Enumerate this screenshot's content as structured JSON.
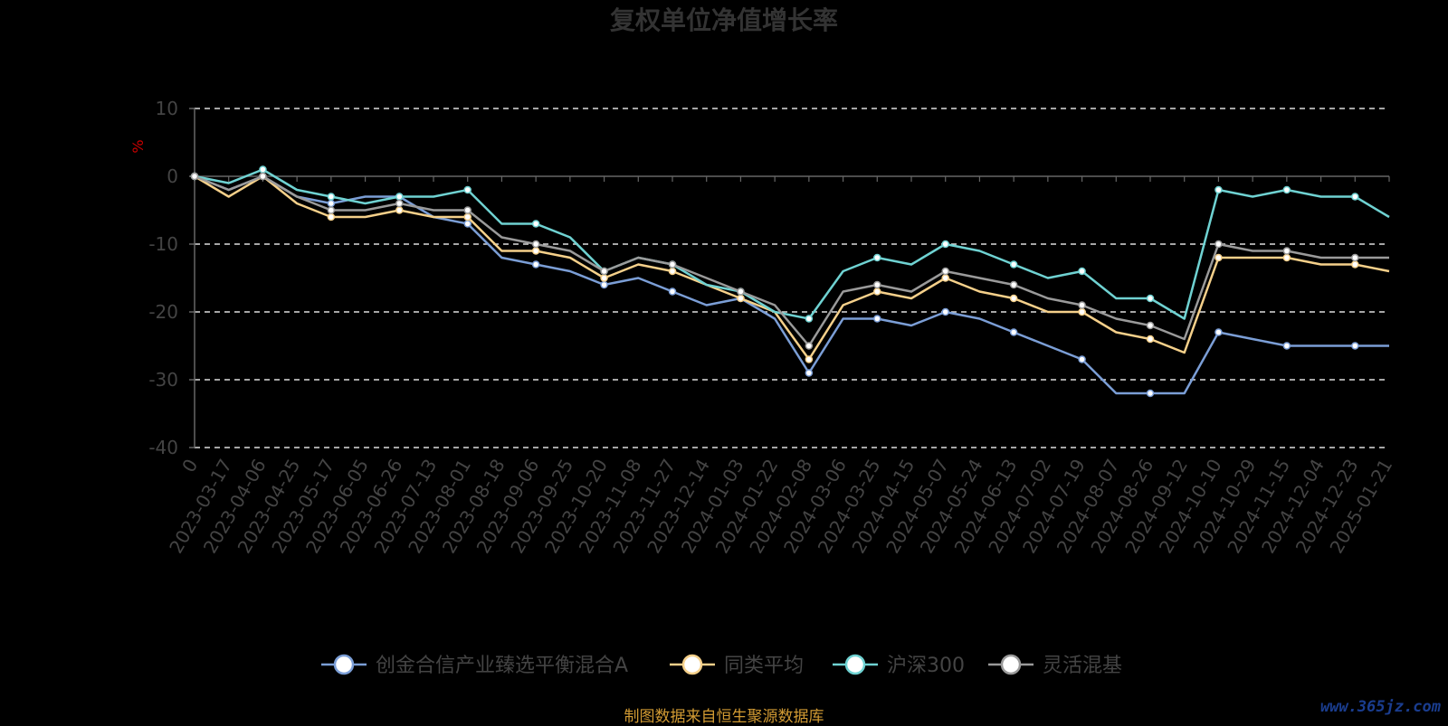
{
  "chart_data": {
    "type": "line",
    "title": "复权单位净值增长率",
    "ylabel": "%",
    "ylim": [
      -40,
      10
    ],
    "yticks": [
      10,
      0,
      -10,
      -20,
      -30,
      -40
    ],
    "grid": true,
    "legend_position": "bottom",
    "x_labels": [
      "0",
      "2023-03-17",
      "2023-04-06",
      "2023-04-25",
      "2023-05-17",
      "2023-06-05",
      "2023-06-26",
      "2023-07-13",
      "2023-08-01",
      "2023-08-18",
      "2023-09-06",
      "2023-09-25",
      "2023-10-20",
      "2023-11-08",
      "2023-11-27",
      "2023-12-14",
      "2024-01-03",
      "2024-01-22",
      "2024-02-08",
      "2024-03-06",
      "2024-03-25",
      "2024-04-15",
      "2024-05-07",
      "2024-05-24",
      "2024-06-13",
      "2024-07-02",
      "2024-07-19",
      "2024-08-07",
      "2024-08-26",
      "2024-09-12",
      "2024-10-10",
      "2024-10-29",
      "2024-11-15",
      "2024-12-04",
      "2024-12-23",
      "2025-01-21"
    ],
    "series": [
      {
        "name": "创金合信产业臻选平衡混合A",
        "color": "#7b9ed6",
        "values": [
          0,
          -2,
          0,
          -3,
          -4,
          -3,
          -3,
          -6,
          -7,
          -12,
          -13,
          -14,
          -16,
          -15,
          -17,
          -19,
          -18,
          -21,
          -29,
          -21,
          -21,
          -22,
          -20,
          -21,
          -23,
          -25,
          -27,
          -32,
          -32,
          -32,
          -23,
          -24,
          -25,
          -25,
          -25,
          -25
        ]
      },
      {
        "name": "同类平均",
        "color": "#f5d08a",
        "values": [
          0,
          -3,
          0,
          -4,
          -6,
          -6,
          -5,
          -6,
          -6,
          -11,
          -11,
          -12,
          -15,
          -13,
          -14,
          -16,
          -18,
          -20,
          -27,
          -19,
          -17,
          -18,
          -15,
          -17,
          -18,
          -20,
          -20,
          -23,
          -24,
          -26,
          -12,
          -12,
          -12,
          -13,
          -13,
          -14
        ]
      },
      {
        "name": "沪深300",
        "color": "#6fd2d2",
        "values": [
          0,
          -1,
          1,
          -2,
          -3,
          -4,
          -3,
          -3,
          -2,
          -7,
          -7,
          -9,
          -14,
          -12,
          -13,
          -16,
          -17,
          -20,
          -21,
          -14,
          -12,
          -13,
          -10,
          -11,
          -13,
          -15,
          -14,
          -18,
          -18,
          -21,
          -2,
          -3,
          -2,
          -3,
          -3,
          -6
        ]
      },
      {
        "name": "灵活混基",
        "color": "#9a9a9a",
        "values": [
          0,
          -2,
          0,
          -3,
          -5,
          -5,
          -4,
          -5,
          -5,
          -9,
          -10,
          -11,
          -14,
          -12,
          -13,
          -15,
          -17,
          -19,
          -25,
          -17,
          -16,
          -17,
          -14,
          -15,
          -16,
          -18,
          -19,
          -21,
          -22,
          -24,
          -10,
          -11,
          -11,
          -12,
          -12,
          -12
        ]
      }
    ]
  },
  "footer": {
    "source": "制图数据来自恒生聚源数据库",
    "watermark": "www.365jz.com"
  }
}
